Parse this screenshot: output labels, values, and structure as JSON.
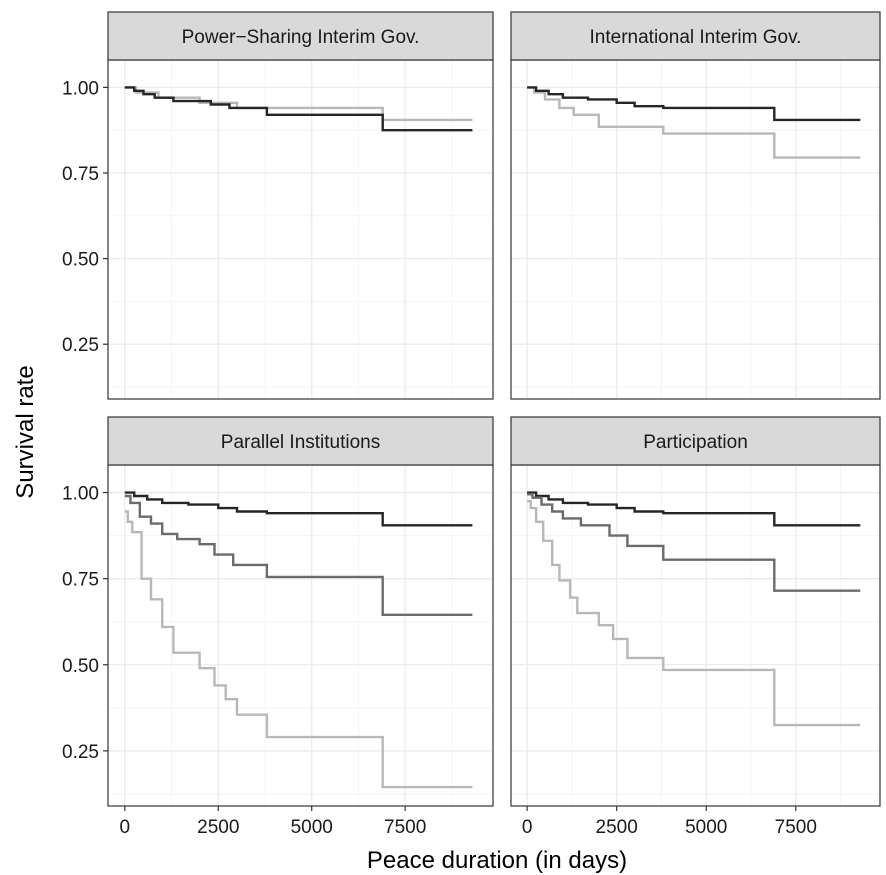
{
  "chart_data": {
    "type": "line",
    "subtype": "step",
    "layout": "2x2 facet grid",
    "xlabel": "Peace duration (in days)",
    "ylabel": "Survival rate",
    "xlim": [
      -450,
      9850
    ],
    "ylim": [
      0.09,
      1.08
    ],
    "x_ticks": [
      0,
      2500,
      5000,
      7500
    ],
    "x_tick_labels": [
      "0",
      "2500",
      "5000",
      "7500"
    ],
    "y_ticks": [
      0.25,
      0.5,
      0.75,
      1.0
    ],
    "y_tick_labels": [
      "0.25",
      "0.50",
      "0.75",
      "1.00"
    ],
    "grid": true,
    "legend": "none",
    "colors": {
      "dark": "#262626",
      "medium": "#6b6b6b",
      "light": "#b8b8b8",
      "strip_bg": "#d9d9d9",
      "grid_major": "#ebebeb",
      "grid_minor": "#f5f5f5",
      "panel_border": "#333333"
    },
    "panels": [
      {
        "title": "Power−Sharing Interim Gov.",
        "series": [
          {
            "color": "light",
            "x": [
              0,
              300,
              900,
              2000,
              3000,
              6900,
              9300
            ],
            "y": [
              1.0,
              0.985,
              0.97,
              0.955,
              0.94,
              0.905,
              0.905
            ]
          },
          {
            "color": "dark",
            "x": [
              0,
              250,
              500,
              800,
              1300,
              2300,
              2800,
              3800,
              6900,
              9300
            ],
            "y": [
              1.0,
              0.99,
              0.98,
              0.97,
              0.96,
              0.95,
              0.94,
              0.92,
              0.875,
              0.875
            ]
          }
        ]
      },
      {
        "title": "International Interim Gov.",
        "series": [
          {
            "color": "light",
            "x": [
              0,
              200,
              500,
              900,
              1300,
              2000,
              3800,
              6900,
              9300
            ],
            "y": [
              1.0,
              0.985,
              0.965,
              0.94,
              0.92,
              0.885,
              0.865,
              0.795,
              0.795
            ]
          },
          {
            "color": "dark",
            "x": [
              0,
              250,
              600,
              1000,
              1700,
              2500,
              3000,
              3800,
              6900,
              9300
            ],
            "y": [
              1.0,
              0.99,
              0.98,
              0.97,
              0.965,
              0.955,
              0.945,
              0.94,
              0.905,
              0.905
            ]
          }
        ]
      },
      {
        "title": "Parallel Institutions",
        "series": [
          {
            "color": "dark",
            "x": [
              0,
              250,
              600,
              1000,
              1700,
              2500,
              3000,
              3800,
              6900,
              9300
            ],
            "y": [
              1.0,
              0.99,
              0.98,
              0.97,
              0.965,
              0.955,
              0.945,
              0.94,
              0.905,
              0.905
            ]
          },
          {
            "color": "medium",
            "x": [
              0,
              150,
              400,
              700,
              1000,
              1400,
              2000,
              2400,
              2900,
              3800,
              6900,
              9300
            ],
            "y": [
              0.99,
              0.97,
              0.93,
              0.91,
              0.88,
              0.865,
              0.85,
              0.82,
              0.79,
              0.755,
              0.645,
              0.645
            ]
          },
          {
            "color": "light",
            "x": [
              0,
              80,
              200,
              450,
              700,
              1000,
              1300,
              2000,
              2400,
              2700,
              3000,
              3800,
              6900,
              9300
            ],
            "y": [
              0.945,
              0.915,
              0.885,
              0.75,
              0.69,
              0.61,
              0.535,
              0.49,
              0.44,
              0.4,
              0.355,
              0.29,
              0.145,
              0.145
            ]
          }
        ]
      },
      {
        "title": "Participation",
        "series": [
          {
            "color": "dark",
            "x": [
              0,
              250,
              600,
              1000,
              1700,
              2500,
              3000,
              3800,
              6900,
              9300
            ],
            "y": [
              1.0,
              0.99,
              0.98,
              0.97,
              0.965,
              0.955,
              0.945,
              0.94,
              0.905,
              0.905
            ]
          },
          {
            "color": "medium",
            "x": [
              0,
              150,
              400,
              700,
              1000,
              1500,
              2300,
              2800,
              3800,
              6900,
              9300
            ],
            "y": [
              0.995,
              0.985,
              0.965,
              0.945,
              0.925,
              0.905,
              0.875,
              0.845,
              0.805,
              0.715,
              0.715
            ]
          },
          {
            "color": "light",
            "x": [
              0,
              100,
              250,
              450,
              700,
              900,
              1200,
              1400,
              2000,
              2400,
              2800,
              3800,
              6900,
              9300
            ],
            "y": [
              0.975,
              0.955,
              0.915,
              0.86,
              0.79,
              0.745,
              0.695,
              0.65,
              0.615,
              0.575,
              0.52,
              0.485,
              0.325,
              0.325
            ]
          }
        ]
      }
    ]
  }
}
